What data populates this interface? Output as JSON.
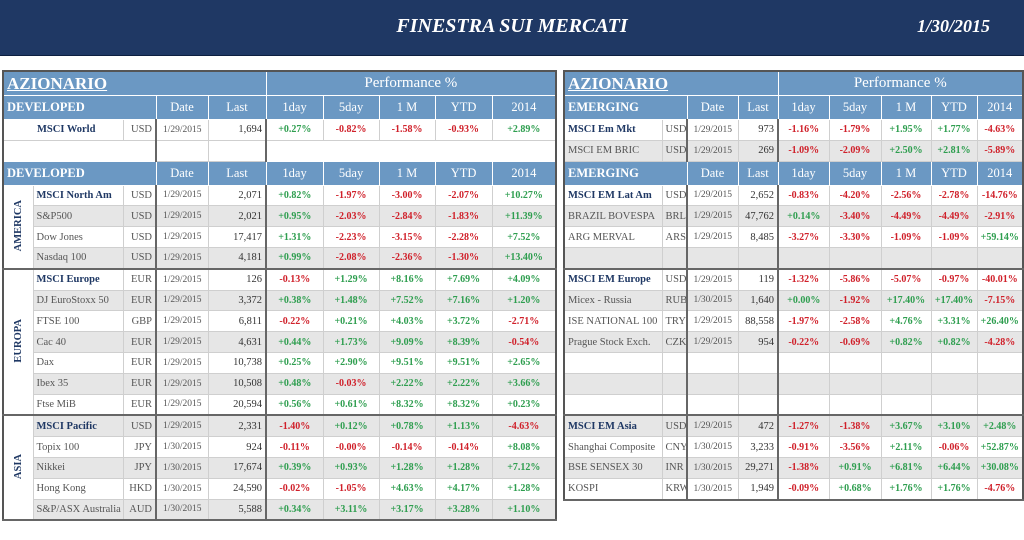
{
  "header": {
    "title": "FINESTRA SUI MERCATI",
    "date": "1/30/2015"
  },
  "colors": {
    "banner": "#1f3864",
    "header_blue": "#6b98c3",
    "positive": "#2e9e4f",
    "negative": "#d0202a"
  },
  "left": {
    "title": "AZIONARIO",
    "perf_header": "Performance  %",
    "columns": {
      "date": "Date",
      "last": "Last",
      "d1": "1day",
      "d5": "5day",
      "m1": "1 M",
      "ytd": "YTD",
      "y2014": "2014"
    },
    "top_section": {
      "label": "DEVELOPED",
      "rows": [
        {
          "name": "MSCI World",
          "ccy": "USD",
          "date": "1/29/2015",
          "last": "1,694",
          "d1": "+0.27%",
          "d5": "-0.82%",
          "m1": "-1.58%",
          "ytd": "-0.93%",
          "y2014": "+2.89%",
          "bold": true
        }
      ]
    },
    "bottom_section": {
      "label": "DEVELOPED",
      "groups": [
        {
          "region": "AMERICA",
          "rows": [
            {
              "name": "MSCI North Am",
              "ccy": "USD",
              "date": "1/29/2015",
              "last": "2,071",
              "d1": "+0.82%",
              "d5": "-1.97%",
              "m1": "-3.00%",
              "ytd": "-2.07%",
              "y2014": "+10.27%",
              "bold": true
            },
            {
              "name": "S&P500",
              "ccy": "USD",
              "date": "1/29/2015",
              "last": "2,021",
              "d1": "+0.95%",
              "d5": "-2.03%",
              "m1": "-2.84%",
              "ytd": "-1.83%",
              "y2014": "+11.39%"
            },
            {
              "name": "Dow Jones",
              "ccy": "USD",
              "date": "1/29/2015",
              "last": "17,417",
              "d1": "+1.31%",
              "d5": "-2.23%",
              "m1": "-3.15%",
              "ytd": "-2.28%",
              "y2014": "+7.52%"
            },
            {
              "name": "Nasdaq 100",
              "ccy": "USD",
              "date": "1/29/2015",
              "last": "4,181",
              "d1": "+0.99%",
              "d5": "-2.08%",
              "m1": "-2.36%",
              "ytd": "-1.30%",
              "y2014": "+13.40%"
            }
          ]
        },
        {
          "region": "EUROPA",
          "rows": [
            {
              "name": "MSCI Europe",
              "ccy": "EUR",
              "date": "1/29/2015",
              "last": "126",
              "d1": "-0.13%",
              "d5": "+1.29%",
              "m1": "+8.16%",
              "ytd": "+7.69%",
              "y2014": "+4.09%",
              "bold": true
            },
            {
              "name": "DJ EuroStoxx 50",
              "ccy": "EUR",
              "date": "1/29/2015",
              "last": "3,372",
              "d1": "+0.38%",
              "d5": "+1.48%",
              "m1": "+7.52%",
              "ytd": "+7.16%",
              "y2014": "+1.20%"
            },
            {
              "name": "FTSE 100",
              "ccy": "GBP",
              "date": "1/29/2015",
              "last": "6,811",
              "d1": "-0.22%",
              "d5": "+0.21%",
              "m1": "+4.03%",
              "ytd": "+3.72%",
              "y2014": "-2.71%"
            },
            {
              "name": "Cac 40",
              "ccy": "EUR",
              "date": "1/29/2015",
              "last": "4,631",
              "d1": "+0.44%",
              "d5": "+1.73%",
              "m1": "+9.09%",
              "ytd": "+8.39%",
              "y2014": "-0.54%"
            },
            {
              "name": "Dax",
              "ccy": "EUR",
              "date": "1/29/2015",
              "last": "10,738",
              "d1": "+0.25%",
              "d5": "+2.90%",
              "m1": "+9.51%",
              "ytd": "+9.51%",
              "y2014": "+2.65%"
            },
            {
              "name": "Ibex 35",
              "ccy": "EUR",
              "date": "1/29/2015",
              "last": "10,508",
              "d1": "+0.48%",
              "d5": "-0.03%",
              "m1": "+2.22%",
              "ytd": "+2.22%",
              "y2014": "+3.66%"
            },
            {
              "name": "Ftse MiB",
              "ccy": "EUR",
              "date": "1/29/2015",
              "last": "20,594",
              "d1": "+0.56%",
              "d5": "+0.61%",
              "m1": "+8.32%",
              "ytd": "+8.32%",
              "y2014": "+0.23%"
            }
          ]
        },
        {
          "region": "ASIA",
          "rows": [
            {
              "name": "MSCI Pacific",
              "ccy": "USD",
              "date": "1/29/2015",
              "last": "2,331",
              "d1": "-1.40%",
              "d5": "+0.12%",
              "m1": "+0.78%",
              "ytd": "+1.13%",
              "y2014": "-4.63%",
              "bold": true
            },
            {
              "name": "Topix 100",
              "ccy": "JPY",
              "date": "1/30/2015",
              "last": "924",
              "d1": "-0.11%",
              "d5": "-0.00%",
              "m1": "-0.14%",
              "ytd": "-0.14%",
              "y2014": "+8.08%"
            },
            {
              "name": "Nikkei",
              "ccy": "JPY",
              "date": "1/30/2015",
              "last": "17,674",
              "d1": "+0.39%",
              "d5": "+0.93%",
              "m1": "+1.28%",
              "ytd": "+1.28%",
              "y2014": "+7.12%"
            },
            {
              "name": "Hong Kong",
              "ccy": "HKD",
              "date": "1/30/2015",
              "last": "24,590",
              "d1": "-0.02%",
              "d5": "-1.05%",
              "m1": "+4.63%",
              "ytd": "+4.17%",
              "y2014": "+1.28%"
            },
            {
              "name": "S&P/ASX Australia",
              "ccy": "AUD",
              "date": "1/30/2015",
              "last": "5,588",
              "d1": "+0.34%",
              "d5": "+3.11%",
              "m1": "+3.17%",
              "ytd": "+3.28%",
              "y2014": "+1.10%"
            }
          ]
        }
      ]
    }
  },
  "right": {
    "title": "AZIONARIO",
    "perf_header": "Performance  %",
    "columns": {
      "date": "Date",
      "last": "Last",
      "d1": "1day",
      "d5": "5day",
      "m1": "1 M",
      "ytd": "YTD",
      "y2014": "2014"
    },
    "top_section": {
      "label": "EMERGING",
      "rows": [
        {
          "name": "MSCI Em Mkt",
          "ccy": "USD",
          "date": "1/29/2015",
          "last": "973",
          "d1": "-1.16%",
          "d5": "-1.79%",
          "m1": "+1.95%",
          "ytd": "+1.77%",
          "y2014": "-4.63%",
          "bold": true
        },
        {
          "name": "MSCI EM BRIC",
          "ccy": "USD",
          "date": "1/29/2015",
          "last": "269",
          "d1": "-1.09%",
          "d5": "-2.09%",
          "m1": "+2.50%",
          "ytd": "+2.81%",
          "y2014": "-5.89%"
        }
      ]
    },
    "bottom_section": {
      "label": "EMERGING",
      "groups": [
        {
          "rows": [
            {
              "name": "MSCI EM Lat Am",
              "ccy": "USD",
              "date": "1/29/2015",
              "last": "2,652",
              "d1": "-0.83%",
              "d5": "-4.20%",
              "m1": "-2.56%",
              "ytd": "-2.78%",
              "y2014": "-14.76%",
              "bold": true
            },
            {
              "name": "BRAZIL BOVESPA",
              "ccy": "BRL",
              "date": "1/29/2015",
              "last": "47,762",
              "d1": "+0.14%",
              "d5": "-3.40%",
              "m1": "-4.49%",
              "ytd": "-4.49%",
              "y2014": "-2.91%"
            },
            {
              "name": "ARG MERVAL",
              "ccy": "ARS",
              "date": "1/29/2015",
              "last": "8,485",
              "d1": "-3.27%",
              "d5": "-3.30%",
              "m1": "-1.09%",
              "ytd": "-1.09%",
              "y2014": "+59.14%"
            }
          ]
        },
        {
          "rows": [
            {
              "name": "MSCI EM Europe",
              "ccy": "USD",
              "date": "1/29/2015",
              "last": "119",
              "d1": "-1.32%",
              "d5": "-5.86%",
              "m1": "-5.07%",
              "ytd": "-0.97%",
              "y2014": "-40.01%",
              "bold": true
            },
            {
              "name": "Micex - Russia",
              "ccy": "RUB",
              "date": "1/30/2015",
              "last": "1,640",
              "d1": "+0.00%",
              "d5": "-1.92%",
              "m1": "+17.40%",
              "ytd": "+17.40%",
              "y2014": "-7.15%"
            },
            {
              "name": "ISE NATIONAL 100",
              "ccy": "TRY",
              "date": "1/29/2015",
              "last": "88,558",
              "d1": "-1.97%",
              "d5": "-2.58%",
              "m1": "+4.76%",
              "ytd": "+3.31%",
              "y2014": "+26.40%"
            },
            {
              "name": "Prague Stock Exch.",
              "ccy": "CZK",
              "date": "1/29/2015",
              "last": "954",
              "d1": "-0.22%",
              "d5": "-0.69%",
              "m1": "+0.82%",
              "ytd": "+0.82%",
              "y2014": "-4.28%"
            }
          ]
        },
        {
          "rows": [
            {
              "name": "MSCI EM Asia",
              "ccy": "USD",
              "date": "1/29/2015",
              "last": "472",
              "d1": "-1.27%",
              "d5": "-1.38%",
              "m1": "+3.67%",
              "ytd": "+3.10%",
              "y2014": "+2.48%",
              "bold": true
            },
            {
              "name": "Shanghai Composite",
              "ccy": "CNY",
              "date": "1/30/2015",
              "last": "3,233",
              "d1": "-0.91%",
              "d5": "-3.56%",
              "m1": "+2.11%",
              "ytd": "-0.06%",
              "y2014": "+52.87%"
            },
            {
              "name": "BSE SENSEX 30",
              "ccy": "INR",
              "date": "1/30/2015",
              "last": "29,271",
              "d1": "-1.38%",
              "d5": "+0.91%",
              "m1": "+6.81%",
              "ytd": "+6.44%",
              "y2014": "+30.08%"
            },
            {
              "name": "KOSPI",
              "ccy": "KRW",
              "date": "1/30/2015",
              "last": "1,949",
              "d1": "-0.09%",
              "d5": "+0.68%",
              "m1": "+1.76%",
              "ytd": "+1.76%",
              "y2014": "-4.76%"
            }
          ]
        }
      ]
    }
  }
}
